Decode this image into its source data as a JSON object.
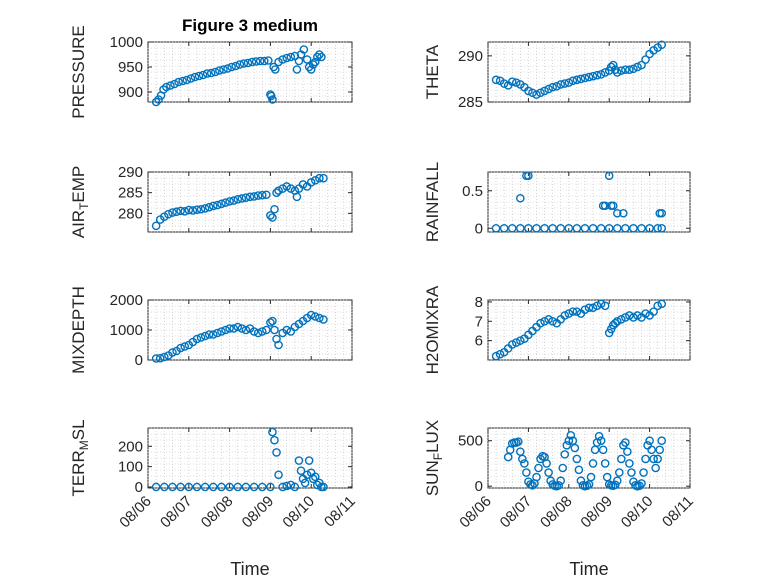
{
  "chart_data": [
    {
      "type": "scatter",
      "title": "Figure 3 medium",
      "ylabel": "PRESSURE",
      "ylim": [
        880,
        1000
      ],
      "yticks": [
        900,
        950,
        1000
      ],
      "xlim": [
        0,
        5
      ],
      "x": [
        0.2,
        0.26,
        0.32,
        0.38,
        0.45,
        0.55,
        0.65,
        0.75,
        0.85,
        0.95,
        1.05,
        1.15,
        1.25,
        1.35,
        1.45,
        1.55,
        1.65,
        1.75,
        1.85,
        1.95,
        2.05,
        2.15,
        2.25,
        2.35,
        2.45,
        2.55,
        2.65,
        2.75,
        2.85,
        2.95,
        3.0,
        3.02,
        3.05,
        3.08,
        3.12,
        3.2,
        3.3,
        3.4,
        3.5,
        3.6,
        3.65,
        3.7,
        3.75,
        3.82,
        3.9,
        3.95,
        4.0,
        4.05,
        4.1,
        4.15,
        4.2,
        4.25
      ],
      "y": [
        880,
        885,
        893,
        905,
        910,
        913,
        916,
        920,
        922,
        924,
        927,
        930,
        932,
        934,
        937,
        938,
        940,
        943,
        945,
        947,
        950,
        952,
        955,
        957,
        958,
        960,
        961,
        962,
        962,
        963,
        895,
        892,
        885,
        950,
        945,
        960,
        965,
        968,
        970,
        972,
        945,
        962,
        975,
        985,
        965,
        950,
        945,
        955,
        960,
        970,
        975,
        970
      ],
      "series_style": "circle-markers"
    },
    {
      "type": "scatter",
      "ylabel": "THETA",
      "ylim": [
        285,
        291.5
      ],
      "yticks": [
        285,
        290
      ],
      "xlim": [
        0,
        5
      ],
      "x": [
        0.2,
        0.3,
        0.4,
        0.5,
        0.6,
        0.7,
        0.8,
        0.9,
        1.0,
        1.1,
        1.2,
        1.3,
        1.4,
        1.5,
        1.6,
        1.7,
        1.8,
        1.9,
        2.0,
        2.1,
        2.2,
        2.3,
        2.4,
        2.5,
        2.6,
        2.7,
        2.8,
        2.9,
        3.0,
        3.05,
        3.1,
        3.15,
        3.2,
        3.3,
        3.4,
        3.5,
        3.6,
        3.7,
        3.8,
        3.9,
        4.0,
        4.1,
        4.2,
        4.3
      ],
      "y": [
        287.4,
        287.3,
        287.0,
        286.8,
        287.2,
        287.1,
        286.9,
        286.6,
        286.2,
        286.0,
        285.8,
        286.0,
        286.2,
        286.4,
        286.6,
        286.7,
        286.9,
        287.0,
        287.1,
        287.3,
        287.4,
        287.5,
        287.6,
        287.7,
        287.8,
        287.9,
        288.0,
        288.2,
        288.4,
        288.8,
        289.0,
        288.5,
        288.2,
        288.4,
        288.5,
        288.5,
        288.6,
        288.8,
        289.0,
        289.6,
        290.2,
        290.6,
        290.9,
        291.2
      ],
      "series_style": "circle-markers"
    },
    {
      "type": "scatter",
      "ylabel": "AIR_TEMP",
      "ylabel_sub": "T",
      "ylabel_main": "AIR",
      "ylabel_rest": "EMP",
      "ylim": [
        275.5,
        290
      ],
      "yticks": [
        280,
        285,
        290
      ],
      "xlim": [
        0,
        5
      ],
      "x": [
        0.2,
        0.3,
        0.4,
        0.5,
        0.6,
        0.7,
        0.8,
        0.9,
        1.0,
        1.1,
        1.2,
        1.3,
        1.4,
        1.5,
        1.6,
        1.7,
        1.8,
        1.9,
        2.0,
        2.1,
        2.2,
        2.3,
        2.4,
        2.5,
        2.6,
        2.7,
        2.8,
        2.9,
        3.0,
        3.05,
        3.1,
        3.15,
        3.2,
        3.3,
        3.4,
        3.5,
        3.6,
        3.65,
        3.7,
        3.8,
        3.9,
        4.0,
        4.1,
        4.2,
        4.3
      ],
      "y": [
        277,
        278.5,
        279.2,
        279.8,
        280.2,
        280.4,
        280.6,
        280.5,
        280.8,
        280.7,
        280.9,
        281.0,
        281.2,
        281.5,
        281.8,
        282.0,
        282.3,
        282.6,
        282.9,
        283.1,
        283.4,
        283.6,
        283.8,
        284.0,
        284.1,
        284.3,
        284.4,
        284.5,
        279.5,
        279.0,
        281.0,
        285.0,
        285.5,
        286.0,
        286.5,
        286.0,
        285.5,
        284.0,
        286.0,
        287.0,
        286.5,
        287.5,
        288.0,
        288.5,
        288.5
      ],
      "series_style": "circle-markers"
    },
    {
      "type": "scatter",
      "ylabel": "RAINFALL",
      "ylim": [
        -0.05,
        0.75
      ],
      "yticks": [
        0,
        0.5
      ],
      "xlim": [
        0,
        5
      ],
      "x": [
        0.2,
        0.4,
        0.6,
        0.8,
        1.0,
        1.2,
        1.4,
        1.6,
        1.8,
        2.0,
        2.2,
        2.4,
        2.6,
        2.8,
        3.0,
        3.2,
        3.4,
        3.6,
        3.8,
        4.0,
        4.2,
        4.3,
        0.8,
        0.95,
        1.0,
        2.85,
        2.9,
        3.0,
        3.05,
        3.1,
        3.2,
        3.35,
        4.25,
        4.3
      ],
      "y": [
        0,
        0,
        0,
        0,
        0,
        0,
        0,
        0,
        0,
        0,
        0,
        0,
        0,
        0,
        0,
        0,
        0,
        0,
        0,
        0,
        0,
        0,
        0.4,
        0.7,
        0.7,
        0.3,
        0.3,
        0.7,
        0.3,
        0.3,
        0.2,
        0.2,
        0.2,
        0.2
      ],
      "series_style": "circle-markers"
    },
    {
      "type": "scatter",
      "ylabel": "MIXDEPTH",
      "ylim": [
        0,
        2000
      ],
      "yticks": [
        0,
        1000,
        2000
      ],
      "xlim": [
        0,
        5
      ],
      "x": [
        0.2,
        0.3,
        0.4,
        0.5,
        0.6,
        0.7,
        0.8,
        0.9,
        1.0,
        1.1,
        1.2,
        1.3,
        1.4,
        1.5,
        1.6,
        1.7,
        1.8,
        1.9,
        2.0,
        2.1,
        2.2,
        2.3,
        2.4,
        2.5,
        2.6,
        2.7,
        2.8,
        2.9,
        3.0,
        3.05,
        3.1,
        3.15,
        3.2,
        3.3,
        3.4,
        3.5,
        3.6,
        3.7,
        3.8,
        3.9,
        4.0,
        4.1,
        4.2,
        4.3
      ],
      "y": [
        50,
        60,
        100,
        150,
        250,
        300,
        400,
        450,
        500,
        600,
        700,
        750,
        800,
        850,
        850,
        900,
        950,
        1000,
        1050,
        1050,
        1100,
        1050,
        1000,
        1050,
        950,
        900,
        950,
        1000,
        1250,
        1300,
        1000,
        700,
        500,
        900,
        1000,
        950,
        1100,
        1200,
        1300,
        1400,
        1500,
        1450,
        1400,
        1350
      ],
      "series_style": "circle-markers"
    },
    {
      "type": "scatter",
      "ylabel": "H2OMIXRA",
      "ylim": [
        5,
        8.1
      ],
      "yticks": [
        6,
        7,
        8
      ],
      "xlim": [
        0,
        5
      ],
      "x": [
        0.2,
        0.3,
        0.4,
        0.5,
        0.6,
        0.7,
        0.8,
        0.9,
        1.0,
        1.1,
        1.2,
        1.3,
        1.4,
        1.5,
        1.6,
        1.7,
        1.8,
        1.9,
        2.0,
        2.1,
        2.2,
        2.3,
        2.4,
        2.5,
        2.6,
        2.7,
        2.8,
        2.9,
        3.0,
        3.05,
        3.1,
        3.15,
        3.2,
        3.3,
        3.4,
        3.5,
        3.6,
        3.7,
        3.8,
        3.9,
        4.0,
        4.1,
        4.2,
        4.3
      ],
      "y": [
        5.2,
        5.3,
        5.4,
        5.6,
        5.8,
        5.9,
        6.0,
        6.1,
        6.3,
        6.5,
        6.7,
        6.9,
        7.0,
        7.1,
        7.0,
        6.9,
        7.1,
        7.3,
        7.4,
        7.5,
        7.5,
        7.4,
        7.6,
        7.7,
        7.7,
        7.8,
        7.9,
        7.8,
        6.4,
        6.6,
        6.8,
        6.9,
        7.0,
        7.1,
        7.2,
        7.3,
        7.2,
        7.3,
        7.2,
        7.4,
        7.3,
        7.5,
        7.8,
        7.9
      ],
      "series_style": "circle-markers"
    },
    {
      "type": "scatter",
      "ylabel": "TERR_MSL",
      "ylabel_main": "TERR",
      "ylabel_sub": "M",
      "ylabel_rest": "SL",
      "ylim": [
        -5,
        290
      ],
      "yticks": [
        0,
        100,
        200
      ],
      "xlim": [
        0,
        5
      ],
      "xticklabels": [
        "08/06",
        "08/07",
        "08/08",
        "08/09",
        "08/10",
        "08/11"
      ],
      "xlabel": "Time",
      "x": [
        0.2,
        0.4,
        0.6,
        0.8,
        1.0,
        1.2,
        1.4,
        1.6,
        1.8,
        2.0,
        2.2,
        2.4,
        2.6,
        2.8,
        3.0,
        3.05,
        3.1,
        3.15,
        3.2,
        3.3,
        3.4,
        3.5,
        3.6,
        3.7,
        3.75,
        3.8,
        3.85,
        3.9,
        3.95,
        4.0,
        4.05,
        4.1,
        4.15,
        4.2,
        4.25,
        4.3
      ],
      "y": [
        0,
        0,
        0,
        0,
        0,
        0,
        0,
        0,
        0,
        0,
        0,
        0,
        0,
        0,
        0,
        270,
        230,
        170,
        60,
        0,
        5,
        10,
        0,
        130,
        80,
        40,
        20,
        60,
        130,
        70,
        40,
        50,
        10,
        20,
        0,
        0
      ],
      "series_style": "circle-markers"
    },
    {
      "type": "scatter",
      "ylabel": "SUN_FLUX",
      "ylabel_main": "SUN",
      "ylabel_sub": "F",
      "ylabel_rest": "LUX",
      "ylim": [
        -20,
        640
      ],
      "yticks": [
        0,
        500
      ],
      "xlim": [
        0,
        5
      ],
      "xticklabels": [
        "08/06",
        "08/07",
        "08/08",
        "08/09",
        "08/10",
        "08/11"
      ],
      "xlabel": "Time",
      "x": [
        0.5,
        0.55,
        0.6,
        0.65,
        0.7,
        0.75,
        0.8,
        0.85,
        0.9,
        0.95,
        1.0,
        1.05,
        1.1,
        1.15,
        1.2,
        1.25,
        1.3,
        1.35,
        1.4,
        1.45,
        1.5,
        1.55,
        1.6,
        1.65,
        1.7,
        1.75,
        1.8,
        1.85,
        1.9,
        1.95,
        2.0,
        2.05,
        2.1,
        2.15,
        2.2,
        2.25,
        2.3,
        2.35,
        2.4,
        2.45,
        2.5,
        2.55,
        2.6,
        2.65,
        2.7,
        2.75,
        2.8,
        2.85,
        2.9,
        2.95,
        3.0,
        3.05,
        3.1,
        3.15,
        3.2,
        3.25,
        3.3,
        3.35,
        3.4,
        3.45,
        3.5,
        3.55,
        3.6,
        3.65,
        3.7,
        3.75,
        3.8,
        3.85,
        3.9,
        3.95,
        4.0,
        4.05,
        4.1,
        4.15,
        4.2,
        4.25,
        4.3
      ],
      "y": [
        320,
        400,
        470,
        480,
        480,
        490,
        380,
        300,
        250,
        150,
        50,
        20,
        10,
        30,
        100,
        200,
        300,
        330,
        320,
        250,
        150,
        60,
        20,
        5,
        0,
        10,
        60,
        200,
        350,
        450,
        500,
        560,
        500,
        420,
        300,
        180,
        60,
        10,
        0,
        5,
        20,
        100,
        250,
        400,
        480,
        550,
        500,
        400,
        250,
        100,
        20,
        10,
        5,
        15,
        60,
        150,
        300,
        450,
        480,
        380,
        250,
        150,
        50,
        10,
        0,
        5,
        30,
        150,
        300,
        450,
        500,
        400,
        300,
        200,
        300,
        400,
        500
      ],
      "series_style": "circle-markers"
    }
  ]
}
